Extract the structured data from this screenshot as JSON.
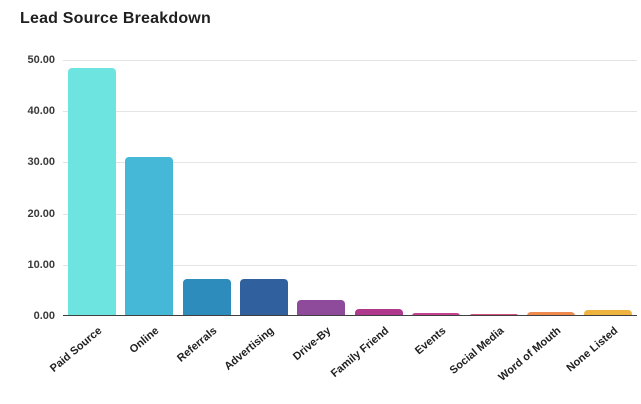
{
  "title": "Lead Source Breakdown",
  "chart_data": {
    "type": "bar",
    "title": "Lead Source Breakdown",
    "xlabel": "",
    "ylabel": "",
    "categories": [
      "Paid Source",
      "Online",
      "Referrals",
      "Advertising",
      "Drive-By",
      "Family Friend",
      "Events",
      "Social Media",
      "Word of Mouth",
      "None Listed"
    ],
    "values": [
      48.5,
      31.0,
      7.3,
      7.2,
      3.1,
      1.3,
      0.6,
      0.3,
      0.8,
      1.1
    ],
    "bar_colors": [
      "#6EE4E1",
      "#45B7D7",
      "#2E8CBC",
      "#30609E",
      "#8E4B9B",
      "#AE398D",
      "#C5418F",
      "#D5517A",
      "#EE8A4D",
      "#EFB440"
    ],
    "ylim": [
      0,
      50
    ],
    "ytick_values": [
      0,
      10,
      20,
      30,
      40,
      50
    ],
    "ytick_labels": [
      "0.00",
      "10.00",
      "20.00",
      "30.00",
      "40.00",
      "50.00"
    ],
    "grid": true,
    "legend": "none",
    "background_color": "#ffffff",
    "gridline_color": "#e4e4e4",
    "axis_line_color": "#3f3f3f",
    "title_color": "#1f1f1f",
    "tick_label_color": "#3a3a3a"
  }
}
